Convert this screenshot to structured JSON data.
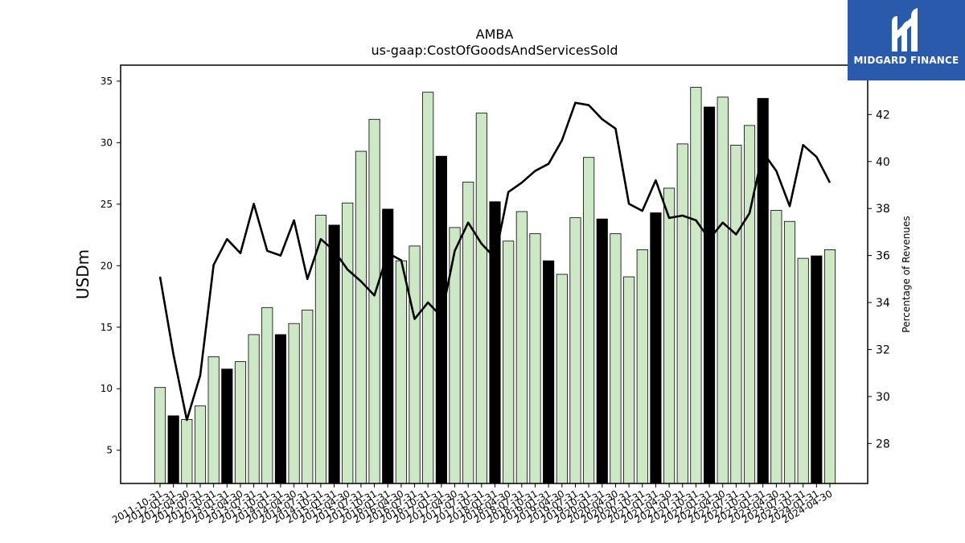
{
  "logo": {
    "text": "MIDGARD FINANCE",
    "icon": "midgard-logo-icon",
    "background": "#2a5aab"
  },
  "chart_data": {
    "type": "bar",
    "title": "AMBA",
    "subtitle": "us-gaap:CostOfGoodsAndServicesSold",
    "ylabel": "USDm",
    "y2label": "Percentage of Revenues",
    "ylim": [
      2.3,
      36.3
    ],
    "y2lim": [
      26.3,
      44.1
    ],
    "yticks": [
      5,
      10,
      15,
      20,
      25,
      30,
      35
    ],
    "y2ticks": [
      28,
      30,
      32,
      34,
      36,
      38,
      40,
      42
    ],
    "colors": {
      "bar": "#cce8c4",
      "bar_highlight": "#000000",
      "line": "#000000"
    },
    "categories": [
      "2011-10-31",
      "2012-01-31",
      "2012-04-30",
      "2012-07-31",
      "2012-10-31",
      "2013-01-31",
      "2013-04-30",
      "2013-07-31",
      "2013-10-31",
      "2014-01-31",
      "2014-04-30",
      "2014-07-31",
      "2014-10-31",
      "2015-01-31",
      "2015-04-30",
      "2015-07-31",
      "2015-10-31",
      "2016-01-31",
      "2016-04-30",
      "2016-07-31",
      "2016-10-31",
      "2017-01-31",
      "2017-04-30",
      "2017-07-31",
      "2017-10-31",
      "2018-01-31",
      "2018-04-30",
      "2018-07-31",
      "2018-10-31",
      "2019-01-31",
      "2019-04-30",
      "2019-07-31",
      "2019-10-31",
      "2020-01-31",
      "2020-04-30",
      "2020-07-31",
      "2020-10-31",
      "2021-01-31",
      "2021-04-30",
      "2021-07-31",
      "2021-10-31",
      "2022-01-31",
      "2022-04-30",
      "2022-07-31",
      "2022-10-31",
      "2023-01-31",
      "2023-04-30",
      "2023-07-31",
      "2023-10-31",
      "2024-01-31",
      "2024-04-30"
    ],
    "series": [
      {
        "type": "bar",
        "values": [
          10.1,
          7.8,
          7.5,
          8.6,
          12.6,
          11.6,
          12.2,
          14.4,
          16.6,
          14.4,
          15.3,
          16.4,
          24.1,
          23.3,
          25.1,
          29.3,
          31.9,
          24.6,
          20.4,
          21.6,
          34.1,
          28.9,
          23.1,
          26.8,
          32.4,
          25.2,
          22.0,
          24.4,
          22.6,
          20.4,
          19.3,
          23.9,
          28.8,
          23.8,
          22.6,
          19.1,
          21.3,
          24.3,
          26.3,
          29.9,
          34.5,
          32.9,
          33.7,
          29.8,
          31.4,
          33.6,
          24.5,
          23.6,
          20.6,
          20.8,
          21.3
        ],
        "highlight": [
          false,
          true,
          false,
          false,
          false,
          true,
          false,
          false,
          false,
          true,
          false,
          false,
          false,
          true,
          false,
          false,
          false,
          true,
          false,
          false,
          false,
          true,
          false,
          false,
          false,
          true,
          false,
          false,
          false,
          true,
          false,
          false,
          false,
          true,
          false,
          false,
          false,
          true,
          false,
          false,
          false,
          true,
          false,
          false,
          false,
          true,
          false,
          false,
          false,
          true,
          false
        ]
      },
      {
        "type": "line",
        "axis": "right",
        "values": [
          35.1,
          31.8,
          29.0,
          30.9,
          35.6,
          36.7,
          36.1,
          38.2,
          36.2,
          36.0,
          37.5,
          35.0,
          36.7,
          36.2,
          35.4,
          34.9,
          34.3,
          36.1,
          35.8,
          33.3,
          34.0,
          33.4,
          36.2,
          37.4,
          36.5,
          35.9,
          38.7,
          39.1,
          39.6,
          39.9,
          40.9,
          42.5,
          42.4,
          41.8,
          41.4,
          38.2,
          37.9,
          39.2,
          37.6,
          37.7,
          37.5,
          36.7,
          37.4,
          36.9,
          37.8,
          40.4,
          39.6,
          38.1,
          40.7,
          40.2,
          39.1
        ]
      }
    ]
  }
}
